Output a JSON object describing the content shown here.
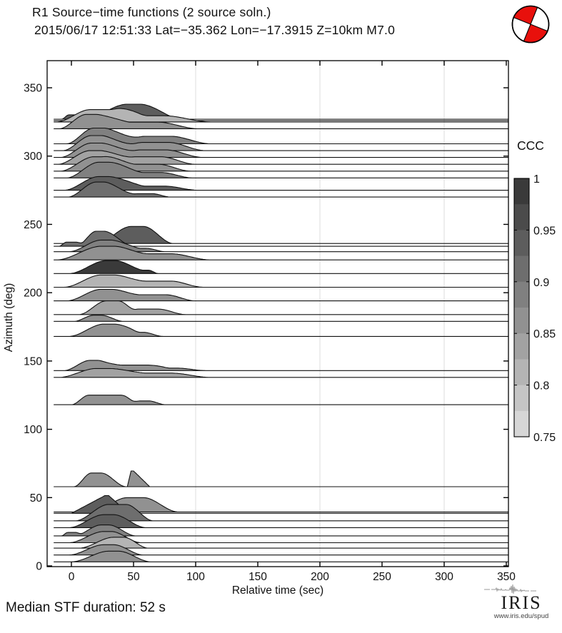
{
  "header": {
    "title": "R1 Source−time functions (2 source soln.)",
    "subtitle": "2015/06/17 12:51:33  Lat=−35.362 Lon=−17.3915  Z=10km  M7.0"
  },
  "beachball": {
    "red": "#e8100c",
    "outline": "#000000",
    "fill": "#ffffff"
  },
  "footer": {
    "median_note": "Median STF duration: 52 s",
    "iris_name": "IRIS",
    "iris_url": "www.iris.edu/spud"
  },
  "chart_data": {
    "type": "area",
    "subtype": "ridgeline-stf",
    "title": "R1 Source−time functions (2 source soln.)",
    "xlabel": "Relative time (sec)",
    "ylabel": "Azimuth (deg)",
    "xlim": [
      -20,
      352
    ],
    "ylim": [
      0,
      370
    ],
    "xticks": [
      0,
      50,
      100,
      150,
      200,
      250,
      300,
      350
    ],
    "yticks": [
      0,
      50,
      100,
      150,
      200,
      250,
      300,
      350
    ],
    "grid_t": [
      100,
      200,
      300
    ],
    "grid_color": "#e2e2e2",
    "colorbar": {
      "label": "CCC",
      "ticks": [
        1,
        0.95,
        0.9,
        0.85,
        0.8,
        0.75
      ],
      "range": [
        0.75,
        1.0
      ],
      "steps": 10,
      "palette_dark_to_light": [
        "#3a3a3a",
        "#4b4b4b",
        "#5d5d5d",
        "#6e6e6e",
        "#808080",
        "#919191",
        "#a2a2a2",
        "#b4b4b4",
        "#c5c5c5",
        "#d6d6d6"
      ]
    },
    "median_stf_duration_s": 52,
    "traces": [
      {
        "az": 327,
        "ccc": 0.95,
        "bumps": [
          [
            -8,
            -2,
            6,
            13,
            3.2
          ]
        ]
      },
      {
        "az": 326,
        "ccc": 0.95,
        "bumps": [
          [
            8,
            45,
            55,
            92,
            12
          ]
        ]
      },
      {
        "az": 325,
        "ccc": 0.825,
        "bumps": [
          [
            -12,
            15,
            35,
            62,
            9
          ],
          [
            30,
            55,
            75,
            112,
            4.5
          ]
        ]
      },
      {
        "az": 320,
        "ccc": 0.875,
        "bumps": [
          [
            -10,
            12,
            20,
            48,
            10.5
          ],
          [
            22,
            45,
            70,
            102,
            4.8
          ]
        ]
      },
      {
        "az": 309,
        "ccc": 0.9,
        "bumps": [
          [
            -4,
            18,
            26,
            55,
            11.5
          ],
          [
            30,
            60,
            80,
            112,
            5.5
          ]
        ]
      },
      {
        "az": 304,
        "ccc": 0.875,
        "bumps": [
          [
            -7,
            16,
            24,
            52,
            11
          ],
          [
            28,
            58,
            78,
            108,
            6
          ]
        ]
      },
      {
        "az": 299,
        "ccc": 0.875,
        "bumps": [
          [
            -9,
            16,
            24,
            52,
            10.5
          ],
          [
            26,
            56,
            76,
            106,
            5.5
          ]
        ]
      },
      {
        "az": 294,
        "ccc": 0.85,
        "bumps": [
          [
            -11,
            15,
            23,
            50,
            10
          ],
          [
            24,
            52,
            72,
            100,
            5.5
          ]
        ]
      },
      {
        "az": 289,
        "ccc": 0.875,
        "bumps": [
          [
            -9,
            18,
            26,
            52,
            10.5
          ],
          [
            24,
            50,
            70,
            96,
            5
          ]
        ]
      },
      {
        "az": 284,
        "ccc": 0.9,
        "bumps": [
          [
            -4,
            22,
            30,
            58,
            11.5
          ],
          [
            30,
            55,
            72,
            98,
            4
          ]
        ]
      },
      {
        "az": 275,
        "ccc": 0.95,
        "bumps": [
          [
            -6,
            22,
            30,
            60,
            10
          ],
          [
            32,
            55,
            75,
            102,
            3
          ]
        ]
      },
      {
        "az": 270,
        "ccc": 0.925,
        "bumps": [
          [
            -3,
            20,
            26,
            52,
            11
          ],
          [
            30,
            55,
            65,
            80,
            2.5
          ]
        ]
      },
      {
        "az": 236,
        "ccc": 0.95,
        "bumps": [
          [
            20,
            48,
            58,
            82,
            12.5
          ]
        ]
      },
      {
        "az": 234,
        "ccc": 0.925,
        "bumps": [
          [
            -10,
            -4,
            4,
            10,
            3
          ],
          [
            4,
            20,
            26,
            50,
            11
          ]
        ]
      },
      {
        "az": 230,
        "ccc": 0.9,
        "bumps": [
          [
            -2,
            24,
            32,
            56,
            8.5
          ],
          [
            34,
            52,
            60,
            76,
            2.5
          ]
        ]
      },
      {
        "az": 224,
        "ccc": 0.875,
        "bumps": [
          [
            -12,
            24,
            34,
            62,
            10
          ],
          [
            34,
            62,
            80,
            112,
            4.5
          ]
        ]
      },
      {
        "az": 214,
        "ccc": 1.0,
        "bumps": [
          [
            -2,
            28,
            36,
            58,
            9.5
          ],
          [
            38,
            55,
            62,
            70,
            2.5
          ]
        ]
      },
      {
        "az": 204,
        "ccc": 0.825,
        "bumps": [
          [
            -6,
            24,
            34,
            60,
            9
          ],
          [
            34,
            60,
            80,
            106,
            4.5
          ]
        ]
      },
      {
        "az": 194,
        "ccc": 0.875,
        "bumps": [
          [
            -4,
            24,
            32,
            56,
            8.5
          ],
          [
            32,
            56,
            76,
            100,
            4.5
          ]
        ]
      },
      {
        "az": 184,
        "ccc": 0.85,
        "bumps": [
          [
            6,
            28,
            38,
            52,
            10
          ],
          [
            38,
            54,
            70,
            92,
            4
          ]
        ]
      },
      {
        "az": 179,
        "ccc": 0.875,
        "bumps": [
          [
            2,
            18,
            24,
            42,
            4.5
          ]
        ]
      },
      {
        "az": 168,
        "ccc": 0.875,
        "bumps": [
          [
            -2,
            26,
            34,
            56,
            9
          ],
          [
            34,
            50,
            58,
            74,
            3
          ]
        ]
      },
      {
        "az": 143,
        "ccc": 0.875,
        "bumps": [
          [
            -6,
            15,
            21,
            42,
            7.5
          ],
          [
            24,
            42,
            60,
            80,
            4
          ],
          [
            60,
            75,
            85,
            108,
            1.8
          ]
        ]
      },
      {
        "az": 138,
        "ccc": 0.85,
        "bumps": [
          [
            -10,
            20,
            30,
            60,
            6.5
          ],
          [
            30,
            58,
            80,
            112,
            3.2
          ]
        ]
      },
      {
        "az": 118,
        "ccc": 0.875,
        "bumps": [
          [
            0,
            14,
            40,
            56,
            7
          ],
          [
            48,
            56,
            62,
            76,
            2.8
          ]
        ]
      },
      {
        "az": 58,
        "ccc": 0.875,
        "bumps": [
          [
            2,
            16,
            24,
            44,
            10
          ],
          [
            45,
            48,
            50,
            63,
            11.5,
            "t"
          ]
        ]
      },
      {
        "az": 39.5,
        "ccc": 0.875,
        "bumps": [
          [
            16,
            45,
            58,
            86,
            10.5
          ]
        ]
      },
      {
        "az": 38.5,
        "ccc": 0.95,
        "bumps": [
          [
            0,
            27,
            30,
            46,
            13,
            "t"
          ]
        ]
      },
      {
        "az": 33,
        "ccc": 0.925,
        "bumps": [
          [
            3,
            30,
            44,
            66,
            12
          ]
        ]
      },
      {
        "az": 28,
        "ccc": 0.95,
        "bumps": [
          [
            -2,
            26,
            34,
            60,
            9.5
          ]
        ]
      },
      {
        "az": 22,
        "ccc": 0.9,
        "bumps": [
          [
            -8,
            -3,
            3,
            9,
            2.5
          ],
          [
            2,
            24,
            30,
            52,
            8
          ]
        ]
      },
      {
        "az": 17,
        "ccc": 0.875,
        "bumps": [
          [
            -2,
            26,
            32,
            56,
            8.2
          ]
        ]
      },
      {
        "az": 13,
        "ccc": 0.825,
        "bumps": [
          [
            6,
            34,
            42,
            62,
            8
          ]
        ]
      },
      {
        "az": 8,
        "ccc": 0.875,
        "bumps": [
          [
            -2,
            26,
            34,
            58,
            7.5
          ]
        ]
      },
      {
        "az": 3,
        "ccc": 0.875,
        "bumps": [
          [
            0,
            30,
            38,
            64,
            7.8
          ]
        ]
      }
    ]
  }
}
